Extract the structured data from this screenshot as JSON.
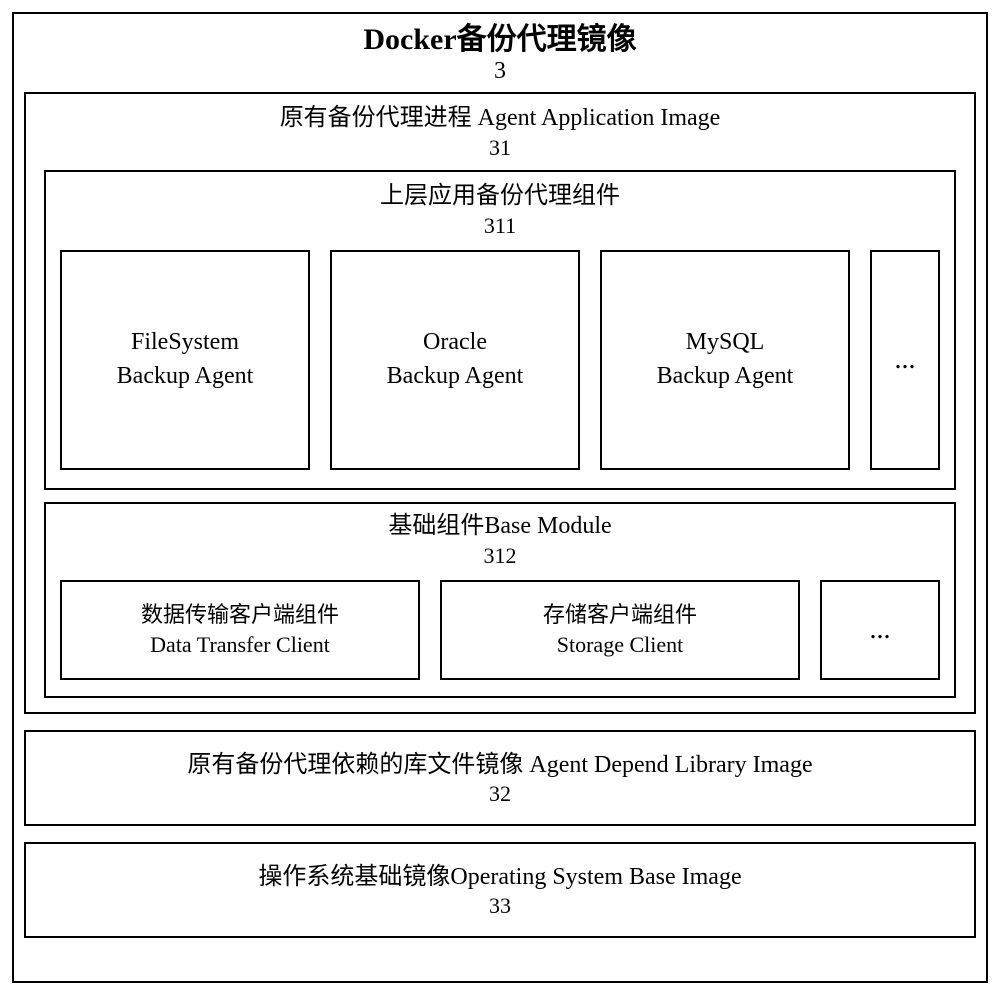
{
  "diagram": {
    "title": "Docker备份代理镜像",
    "number": "3",
    "border_color": "#000000",
    "background_color": "#ffffff",
    "font_family_cjk": "SimSun",
    "font_family_latin": "Times New Roman",
    "title_fontsize": 30,
    "section_fontsize": 24,
    "item_fontsize": 22
  },
  "layer31": {
    "title": "原有备份代理进程 Agent Application Image",
    "number": "31"
  },
  "layer311": {
    "title": "上层应用备份代理组件",
    "number": "311",
    "agents": [
      {
        "label": "FileSystem\nBackup Agent"
      },
      {
        "label": "Oracle\nBackup Agent"
      },
      {
        "label": "MySQL\nBackup Agent"
      },
      {
        "label": "..."
      }
    ]
  },
  "layer312": {
    "title": "基础组件Base Module",
    "number": "312",
    "items": [
      {
        "cn": "数据传输客户端组件",
        "en": "Data Transfer Client"
      },
      {
        "cn": "存储客户端组件",
        "en": "Storage Client"
      },
      {
        "cn": "",
        "en": "..."
      }
    ]
  },
  "layer32": {
    "title": "原有备份代理依赖的库文件镜像 Agent Depend Library Image",
    "number": "32"
  },
  "layer33": {
    "title": "操作系统基础镜像Operating System Base Image",
    "number": "33"
  }
}
